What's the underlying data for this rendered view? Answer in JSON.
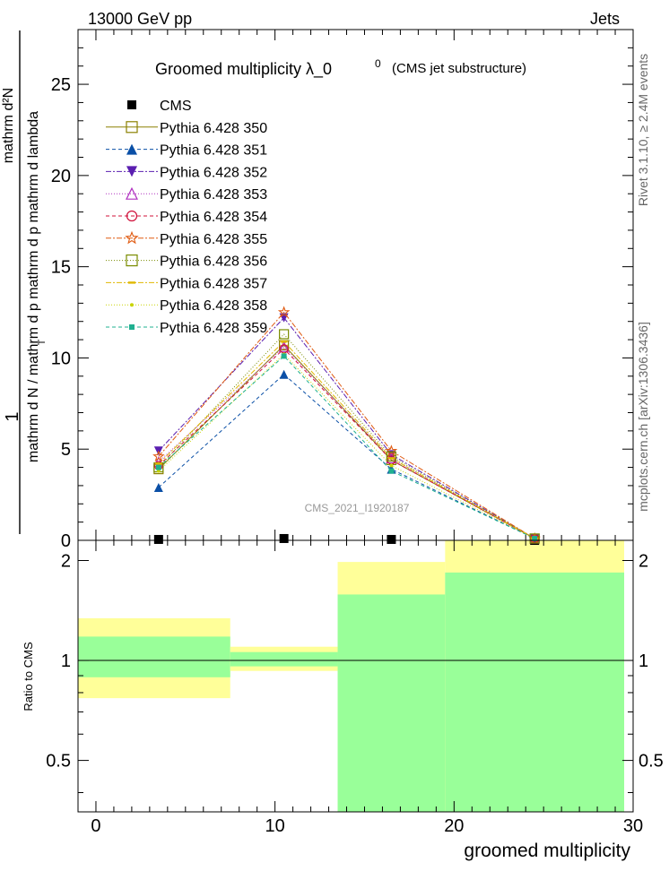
{
  "header": {
    "left": "13000 GeV pp",
    "right": "Jets",
    "side_top": "Rivet 3.1.10, ≥ 2.4M events",
    "side_bottom": "mcplots.cern.ch [arXiv:1306.3436]"
  },
  "chart_data": [
    {
      "type": "line",
      "title": "Groomed multiplicity  λ_0",
      "title_sup": "0",
      "title_suffix": "(CMS jet substructure)",
      "ylabel_top": "mathrm d²N",
      "ylabel_bottom": "mathrm d N / mathrm d p  mathrm d p  mathrm d lambda",
      "ylabel_sub": "T",
      "ylabel_one": "1",
      "watermark": "CMS_2021_I1920187",
      "xlim": [
        -1,
        30
      ],
      "ylim": [
        0,
        28
      ],
      "yticks": [
        0,
        5,
        10,
        15,
        20,
        25
      ],
      "x_bin_centers": [
        3.5,
        10.5,
        16.5,
        24.5
      ],
      "series": [
        {
          "name": "CMS",
          "color": "#000000",
          "marker": "square-filled",
          "dash": "none",
          "values": [
            0.05,
            0.1,
            0.05,
            0.0
          ]
        },
        {
          "name": "Pythia 6.428 350",
          "color": "#8b8000",
          "marker": "square-open",
          "dash": "none",
          "values": [
            3.9,
            10.7,
            4.4,
            0.1
          ]
        },
        {
          "name": "Pythia 6.428 351",
          "color": "#0a4fa6",
          "marker": "triangle-up-filled",
          "dash": "4,3",
          "values": [
            2.9,
            9.1,
            3.9,
            0.1
          ]
        },
        {
          "name": "Pythia 6.428 352",
          "color": "#5a1eb0",
          "marker": "triangle-down-filled",
          "dash": "6,2,2,2",
          "values": [
            4.9,
            12.2,
            4.7,
            0.1
          ]
        },
        {
          "name": "Pythia 6.428 353",
          "color": "#b030c0",
          "marker": "triangle-up-open",
          "dash": "1,2",
          "values": [
            4.3,
            10.6,
            4.5,
            0.1
          ]
        },
        {
          "name": "Pythia 6.428 354",
          "color": "#d0103a",
          "marker": "circle-open",
          "dash": "4,3",
          "values": [
            4.1,
            10.5,
            4.4,
            0.1
          ]
        },
        {
          "name": "Pythia 6.428 355",
          "color": "#e05a10",
          "marker": "star-open",
          "dash": "6,2,2,2",
          "values": [
            4.6,
            12.5,
            4.9,
            0.1
          ]
        },
        {
          "name": "Pythia 6.428 356",
          "color": "#7a8c00",
          "marker": "square-open",
          "dash": "1,2",
          "values": [
            4.0,
            11.3,
            4.6,
            0.1
          ]
        },
        {
          "name": "Pythia 6.428 357",
          "color": "#e0b800",
          "marker": "dash",
          "dash": "6,2,2,2",
          "values": [
            4.2,
            10.9,
            4.5,
            0.1
          ]
        },
        {
          "name": "Pythia 6.428 358",
          "color": "#c8d400",
          "marker": "dot",
          "dash": "1,2",
          "values": [
            3.8,
            10.2,
            4.1,
            0.1
          ]
        },
        {
          "name": "Pythia 6.428 359",
          "color": "#20b090",
          "marker": "square-small",
          "dash": "4,3",
          "values": [
            4.0,
            10.1,
            3.8,
            0.1
          ]
        }
      ]
    },
    {
      "type": "area",
      "ylabel": "Ratio to CMS",
      "xlabel": "groomed multiplicity",
      "xlim": [
        -1,
        30
      ],
      "ylim": [
        0.35,
        2.3
      ],
      "yticks": [
        0.5,
        1,
        2
      ],
      "xticks": [
        0,
        10,
        20,
        30
      ],
      "bins": [
        {
          "x0": -1,
          "x1": 7.5,
          "yellow": [
            0.77,
            1.34
          ],
          "green": [
            0.89,
            1.18
          ]
        },
        {
          "x0": 7.5,
          "x1": 13.5,
          "yellow": [
            0.93,
            1.1
          ],
          "green": [
            0.96,
            1.06
          ]
        },
        {
          "x0": 13.5,
          "x1": 19.5,
          "yellow": [
            0.0,
            1.98
          ],
          "green": [
            0.0,
            1.58
          ]
        },
        {
          "x0": 19.5,
          "x1": 29.5,
          "yellow": [
            0.0,
            2.4
          ],
          "green": [
            0.0,
            1.84
          ]
        }
      ],
      "band_colors": {
        "yellow": "#ffff99",
        "green": "#99ff99"
      },
      "reference_line": 1
    }
  ]
}
